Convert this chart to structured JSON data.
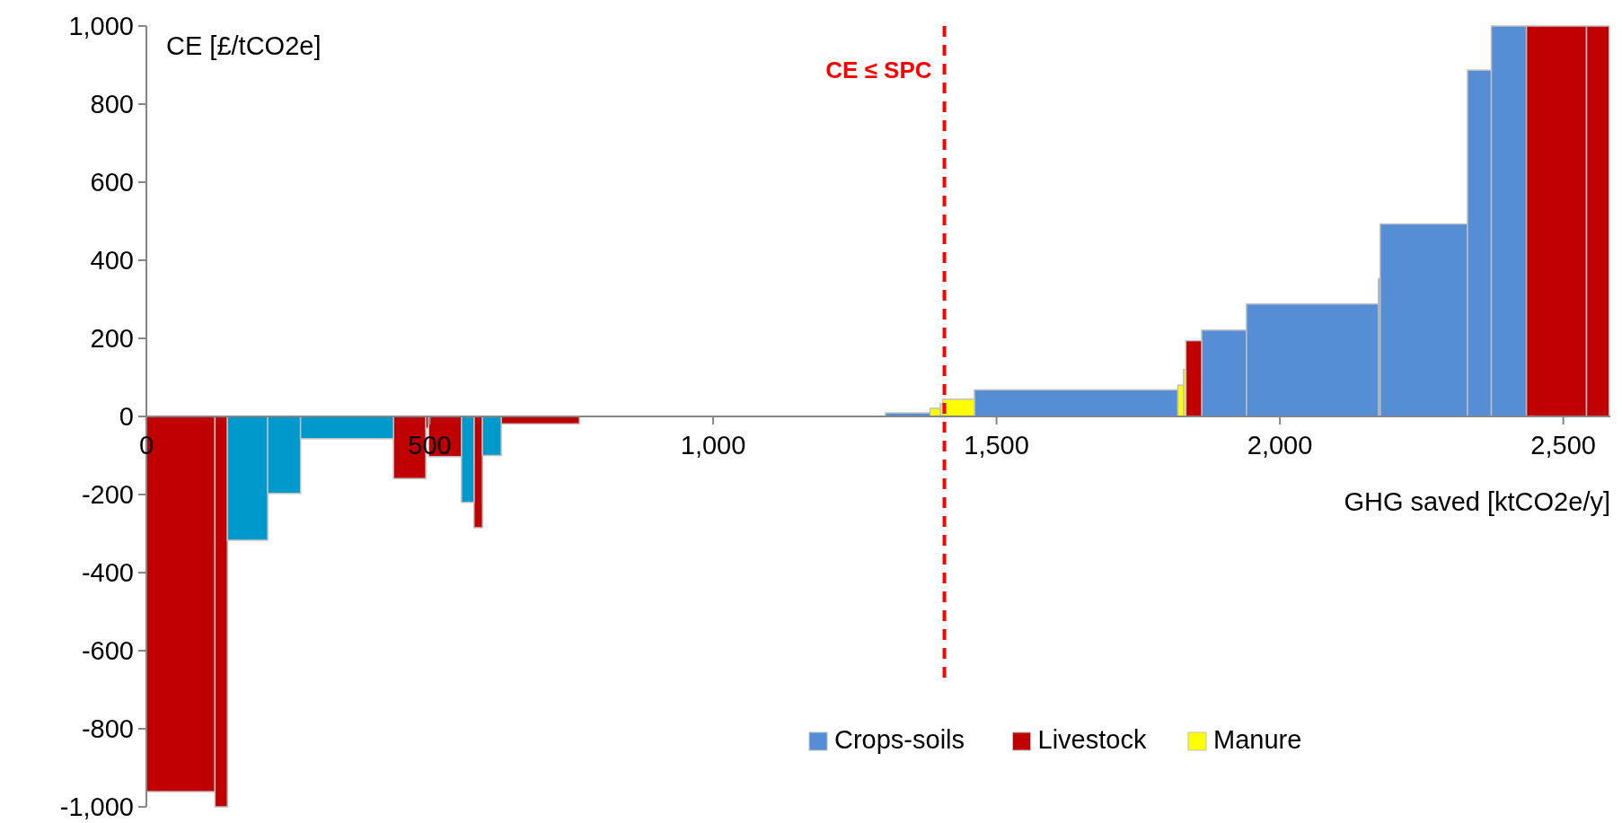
{
  "chart_data": {
    "type": "histogram",
    "xlabel": "GHG saved [ktCO2e/y]",
    "ylabel": "CE [£/tCO2e]",
    "bins": [
      0,
      121,
      143,
      214,
      272,
      436,
      493,
      498,
      556,
      578,
      593,
      626,
      764,
      1304,
      1383,
      1401,
      1405,
      1461,
      1820,
      1830,
      1834,
      1862,
      1941,
      2174,
      2177,
      2331,
      2373,
      2435,
      2541,
      2581
    ],
    "series": [
      {
        "name": "Crops-soils",
        "color": "#558ed5",
        "values": [
          null,
          null,
          null,
          null,
          null,
          null,
          null,
          null,
          null,
          null,
          null,
          null,
          null,
          9,
          null,
          null,
          null,
          68,
          null,
          null,
          null,
          221,
          288,
          353,
          493,
          887,
          1000,
          null,
          null
        ]
      },
      {
        "name": "Livestock",
        "color": "#c00000",
        "values": [
          -961,
          -1000,
          null,
          null,
          null,
          -159,
          -30,
          -103,
          null,
          -285,
          null,
          -19,
          null,
          null,
          null,
          null,
          null,
          null,
          null,
          null,
          194,
          null,
          null,
          null,
          null,
          null,
          null,
          1000,
          1000
        ]
      },
      {
        "name": "Manure",
        "color": "#ffff00",
        "values": [
          null,
          null,
          null,
          null,
          null,
          null,
          null,
          null,
          null,
          null,
          null,
          null,
          null,
          null,
          21,
          32,
          44,
          null,
          80,
          120,
          null,
          null,
          null,
          null,
          null,
          null,
          null,
          null,
          null
        ]
      },
      {
        "color": "#0099cc",
        "values": [
          null,
          null,
          -317,
          -197,
          -57,
          null,
          null,
          null,
          -220,
          null,
          -100,
          null,
          null,
          null,
          null,
          null,
          null,
          null,
          null,
          null,
          null,
          null,
          null,
          null,
          null,
          null,
          null,
          null,
          null
        ]
      }
    ],
    "xlim": [
      0,
      2583
    ],
    "xticks": [
      0,
      500,
      {
        "value": 1000,
        "label": "1,000"
      },
      {
        "value": 1500,
        "label": "1,500"
      },
      {
        "value": 2000,
        "label": "2,000"
      },
      {
        "value": 2500,
        "label": "2,500"
      }
    ],
    "ylim": [
      -1000,
      1000
    ],
    "yticks": [
      {
        "value": -1000,
        "label": "-1,000"
      },
      -800,
      -600,
      -400,
      -200,
      0,
      200,
      400,
      600,
      800,
      {
        "value": 1000,
        "label": "1,000"
      }
    ],
    "ref_lines": [
      {
        "axis": "x",
        "value": 1408,
        "label": "CE ≤ SPC",
        "color": "#ff0000",
        "line_style": "dashed"
      }
    ],
    "grid": false,
    "legend": "bottom right"
  }
}
